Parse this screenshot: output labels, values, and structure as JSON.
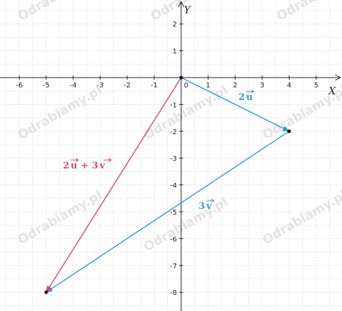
{
  "axes": {
    "x_name": "X",
    "y_name": "Y",
    "x_ticks": [
      "-6",
      "-5",
      "-4",
      "-3",
      "-2",
      "-1",
      "1",
      "2",
      "3",
      "4",
      "5"
    ],
    "y_ticks": [
      "2",
      "1",
      "-1",
      "-2",
      "-3",
      "-4",
      "-5",
      "-6",
      "-7",
      "-8"
    ],
    "origin_label": "0",
    "xlim": [
      -6.8,
      5.8
    ],
    "ylim": [
      -8.6,
      2.8
    ],
    "grid": true
  },
  "points": [
    {
      "x": 0,
      "y": 0
    },
    {
      "x": 4,
      "y": -2
    },
    {
      "x": -5,
      "y": -8
    }
  ],
  "vectors": [
    {
      "from": [
        0,
        0
      ],
      "to": [
        4,
        -2
      ],
      "label": "2u",
      "color": "#2a9fd0"
    },
    {
      "from": [
        4,
        -2
      ],
      "to": [
        -5,
        -8
      ],
      "label": "3v",
      "color": "#2a9fd0"
    },
    {
      "from": [
        0,
        0
      ],
      "to": [
        -5,
        -8
      ],
      "label": "2u + 3v",
      "color": "#d9466b"
    }
  ],
  "watermark": "Odrabiamy.pl",
  "colors": {
    "grid": "#cfcfcf",
    "axis": "#222222",
    "blue": "#2a9fd0",
    "pink": "#d9466b"
  }
}
